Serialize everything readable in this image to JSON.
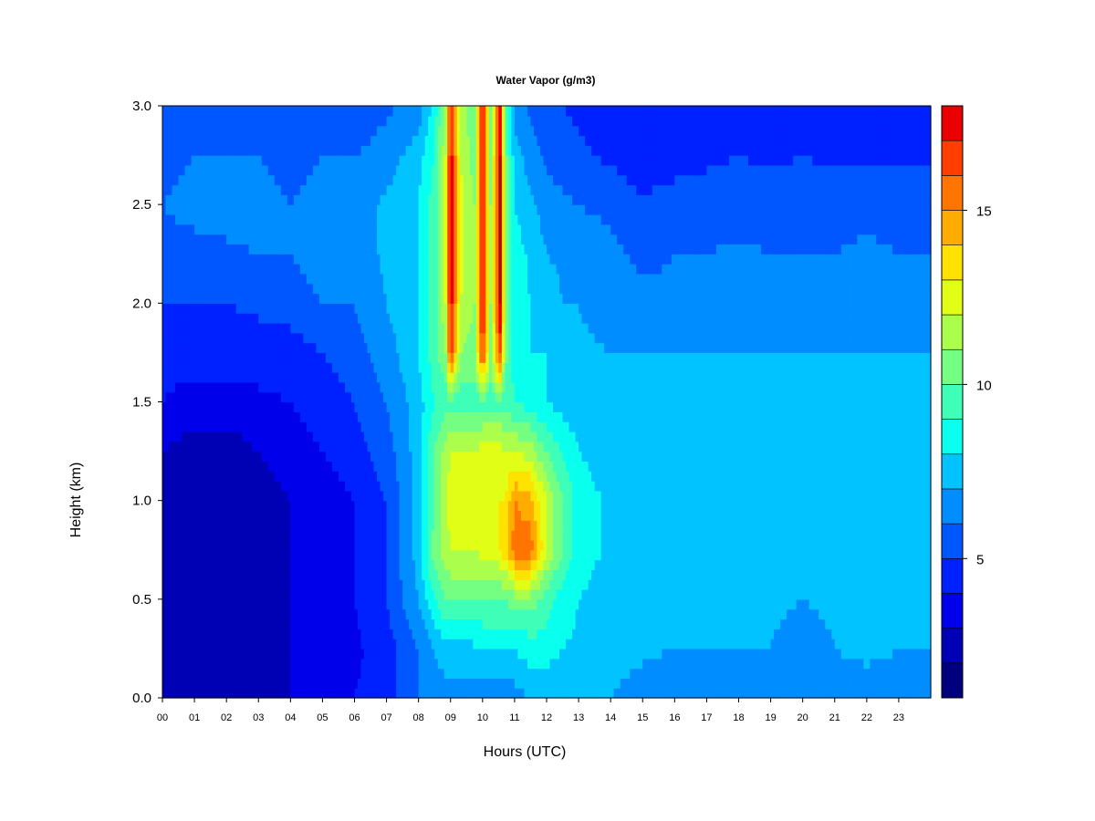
{
  "chart_data": {
    "type": "heatmap",
    "title": "Water Vapor (g/m3)",
    "xlabel": "Hours (UTC)",
    "ylabel": "Height (km)",
    "xlim": [
      0,
      24
    ],
    "ylim": [
      0,
      3
    ],
    "x_tick_labels": [
      "00",
      "01",
      "02",
      "03",
      "04",
      "05",
      "06",
      "07",
      "08",
      "09",
      "10",
      "11",
      "12",
      "13",
      "14",
      "15",
      "16",
      "17",
      "18",
      "19",
      "20",
      "21",
      "22",
      "23"
    ],
    "y_tick_labels": [
      "0.0",
      "0.5",
      "1.0",
      "1.5",
      "2.0",
      "2.5",
      "3.0"
    ],
    "y_ticks": [
      0,
      0.5,
      1.0,
      1.5,
      2.0,
      2.5,
      3.0
    ],
    "colorbar": {
      "range": [
        1,
        18
      ],
      "levels": [
        1,
        2,
        3,
        4,
        5,
        6,
        7,
        8,
        9,
        10,
        11,
        12,
        13,
        14,
        15,
        16,
        17,
        18
      ],
      "ticks": [
        5,
        10,
        15
      ],
      "tick_labels": [
        "5",
        "10",
        "15"
      ],
      "colors": [
        "#00007F",
        "#0000B5",
        "#0000EA",
        "#0021FF",
        "#0057FF",
        "#008DFF",
        "#00C3FF",
        "#09FFEE",
        "#3FFFB8",
        "#75FF82",
        "#ABFF4C",
        "#E1FF16",
        "#FFE200",
        "#FFAB00",
        "#FF7500",
        "#FF3F00",
        "#EA0000",
        "#B50000",
        "#7F0000"
      ]
    },
    "y": [
      0,
      0.25,
      0.5,
      0.75,
      1.0,
      1.25,
      1.5,
      1.75,
      2.0,
      2.25,
      2.5,
      2.75,
      3.0
    ],
    "x": [
      0,
      1,
      2,
      3,
      4,
      5,
      6,
      7,
      8,
      8.5,
      8.85,
      9.0,
      9.3,
      9.75,
      10.0,
      10.25,
      10.55,
      10.7,
      11.0,
      11.5,
      12.0,
      12.5,
      13,
      14,
      15,
      16,
      17,
      18,
      19,
      20,
      21,
      22,
      23,
      24
    ],
    "values": [
      [
        2.0,
        1.5,
        1.5,
        1.5,
        2.0,
        2.5,
        3.0,
        3.5,
        5.0,
        5.5,
        5.5,
        5.5,
        5.5,
        5.5,
        5.5,
        5.5,
        5.5,
        5.5,
        5.5,
        6.0,
        6.0,
        6.0,
        6.0,
        6.0,
        5.5,
        5.0,
        5.0,
        5.0,
        5.0,
        5.0,
        5.0,
        5.0,
        5.0,
        5.0
      ],
      [
        1.5,
        1.2,
        1.2,
        1.5,
        2.0,
        2.5,
        2.8,
        3.5,
        5.0,
        6.0,
        6.5,
        6.5,
        6.5,
        6.8,
        7.0,
        7.0,
        7.0,
        7.0,
        7.0,
        7.5,
        7.5,
        7.0,
        6.8,
        6.5,
        6.2,
        6.0,
        6.0,
        6.0,
        6.0,
        5.5,
        6.0,
        6.5,
        6.0,
        6.0
      ],
      [
        1.5,
        1.2,
        1.2,
        1.5,
        2.0,
        2.5,
        3.0,
        4.0,
        6.0,
        8.0,
        9.0,
        9.0,
        9.0,
        9.0,
        9.0,
        9.0,
        9.0,
        9.0,
        9.5,
        9.5,
        8.5,
        7.5,
        7.0,
        6.5,
        6.2,
        6.2,
        6.2,
        6.2,
        6.2,
        6.0,
        6.2,
        6.5,
        6.5,
        6.5
      ],
      [
        1.5,
        1.2,
        1.2,
        1.5,
        2.0,
        2.5,
        3.0,
        4.0,
        6.5,
        9.5,
        10.5,
        11.0,
        11.0,
        11.0,
        11.5,
        11.5,
        12.0,
        12.5,
        14.5,
        14.5,
        11.0,
        9.0,
        7.5,
        6.8,
        6.5,
        6.5,
        6.5,
        6.5,
        6.5,
        6.0,
        6.5,
        6.5,
        6.5,
        6.5
      ],
      [
        1.5,
        1.2,
        1.2,
        1.5,
        2.0,
        2.5,
        3.0,
        4.0,
        6.5,
        9.0,
        11.0,
        11.5,
        11.5,
        11.5,
        12.0,
        12.0,
        12.0,
        12.0,
        14.0,
        13.5,
        11.0,
        9.0,
        7.5,
        6.8,
        6.5,
        6.5,
        6.5,
        6.5,
        6.5,
        6.0,
        6.5,
        6.5,
        6.5,
        6.5
      ],
      [
        2.0,
        1.5,
        1.5,
        2.0,
        2.5,
        3.0,
        3.5,
        4.5,
        6.5,
        9.0,
        10.5,
        11.0,
        11.0,
        11.0,
        11.5,
        11.5,
        11.5,
        11.0,
        11.0,
        10.5,
        9.0,
        8.0,
        7.0,
        6.5,
        6.5,
        6.5,
        6.5,
        6.5,
        6.5,
        6.0,
        6.5,
        6.5,
        6.5,
        6.5
      ],
      [
        3.0,
        2.5,
        2.5,
        2.8,
        3.0,
        3.5,
        4.0,
        5.0,
        6.5,
        8.0,
        8.5,
        8.5,
        8.5,
        8.5,
        8.5,
        8.5,
        8.5,
        8.5,
        8.0,
        7.5,
        7.0,
        6.5,
        6.5,
        6.5,
        6.2,
        6.2,
        6.2,
        6.2,
        6.2,
        6.0,
        6.2,
        6.5,
        6.5,
        6.5
      ],
      [
        3.5,
        3.5,
        3.5,
        3.5,
        3.5,
        4.0,
        4.5,
        5.5,
        7.0,
        8.5,
        10.0,
        16.0,
        10.0,
        9.5,
        16.0,
        9.5,
        15.5,
        9.5,
        7.5,
        7.0,
        7.0,
        6.5,
        6.2,
        6.0,
        6.0,
        6.0,
        6.0,
        6.0,
        6.0,
        6.0,
        6.0,
        6.0,
        6.0,
        6.0
      ],
      [
        4.0,
        4.0,
        4.0,
        4.2,
        4.5,
        5.0,
        5.0,
        6.0,
        7.0,
        8.5,
        11.0,
        17.0,
        11.0,
        10.0,
        17.0,
        10.0,
        17.0,
        10.0,
        7.5,
        7.0,
        6.5,
        6.0,
        6.0,
        5.5,
        5.2,
        5.2,
        5.5,
        5.5,
        5.5,
        5.5,
        5.5,
        5.5,
        5.5,
        5.5
      ],
      [
        4.5,
        4.5,
        4.8,
        5.0,
        5.0,
        5.5,
        5.5,
        6.2,
        7.0,
        8.5,
        11.5,
        17.0,
        11.5,
        10.0,
        17.0,
        10.0,
        17.0,
        10.0,
        7.5,
        6.8,
        6.0,
        5.8,
        5.5,
        5.2,
        4.8,
        5.0,
        5.0,
        5.2,
        5.0,
        5.0,
        5.0,
        5.2,
        5.0,
        5.0
      ],
      [
        5.0,
        5.5,
        5.5,
        5.5,
        5.0,
        5.5,
        5.5,
        6.2,
        7.0,
        8.5,
        11.5,
        17.0,
        11.5,
        10.0,
        17.0,
        10.0,
        17.0,
        10.0,
        7.0,
        6.2,
        5.5,
        5.2,
        5.0,
        4.8,
        4.2,
        4.5,
        4.5,
        4.5,
        4.5,
        4.5,
        4.5,
        4.8,
        4.5,
        4.5
      ],
      [
        4.5,
        5.0,
        5.0,
        5.0,
        4.5,
        5.0,
        5.0,
        5.5,
        6.5,
        8.0,
        11.0,
        17.0,
        11.0,
        9.5,
        17.0,
        9.5,
        17.0,
        9.5,
        6.5,
        5.5,
        4.8,
        4.5,
        4.2,
        3.8,
        3.2,
        3.5,
        3.8,
        4.0,
        3.8,
        4.0,
        3.8,
        3.8,
        3.8,
        3.8
      ],
      [
        4.0,
        4.0,
        4.0,
        4.0,
        4.0,
        4.2,
        4.2,
        4.8,
        5.5,
        7.5,
        10.5,
        16.5,
        10.5,
        9.0,
        16.5,
        9.0,
        16.5,
        9.0,
        5.5,
        4.8,
        4.2,
        4.0,
        3.8,
        3.5,
        3.0,
        3.2,
        3.5,
        3.5,
        3.5,
        3.5,
        3.2,
        3.2,
        3.5,
        3.5
      ]
    ]
  }
}
